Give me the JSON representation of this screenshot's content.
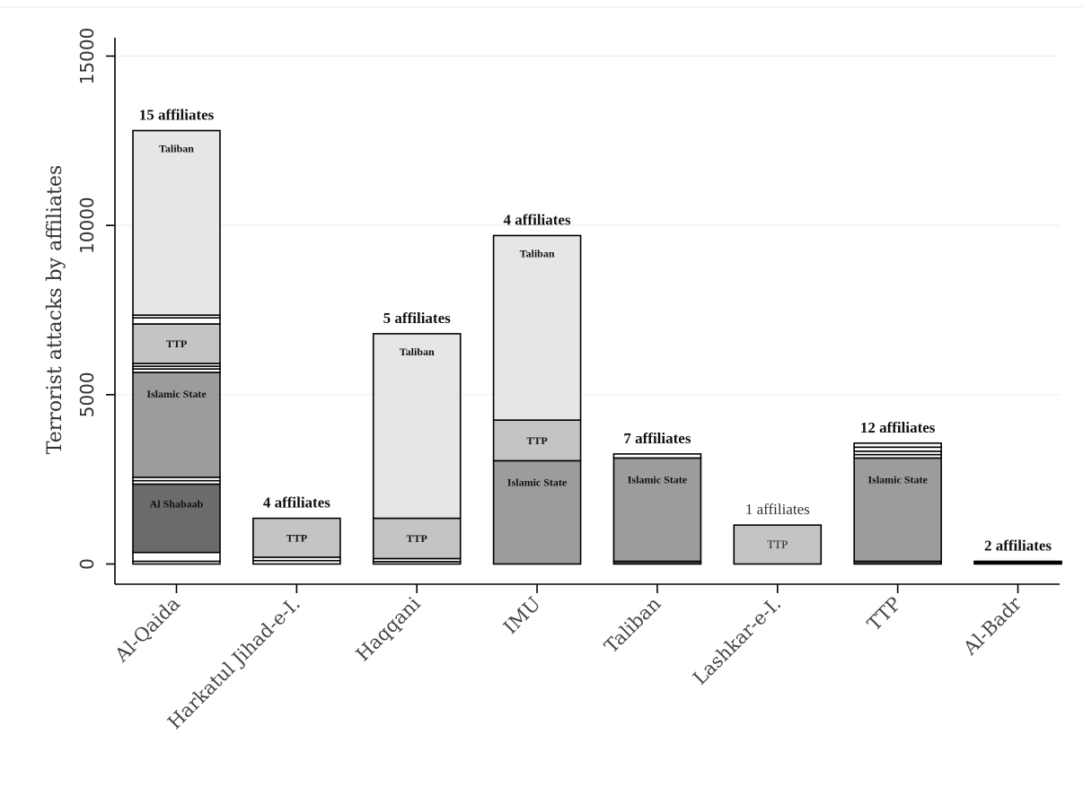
{
  "chart_data": {
    "type": "bar",
    "stacked": true,
    "ylabel": "Terrorist attacks by affiliates",
    "xlabel": "",
    "ylim": [
      0,
      15000
    ],
    "yticks": [
      0,
      5000,
      10000,
      15000
    ],
    "grid": true,
    "categories": [
      "Al-Qaida",
      "Harkatul Jihad-e-I.",
      "Haqqani",
      "IMU",
      "Taliban",
      "Lashkar-e-I.",
      "TTP",
      "Al-Badr"
    ],
    "bars": [
      {
        "category": "Al-Qaida",
        "label": "15 affiliates",
        "label_style": "bold",
        "segments": [
          {
            "value": 80,
            "fill": "#ffffff",
            "label": ""
          },
          {
            "value": 260,
            "fill": "#ffffff",
            "label": ""
          },
          {
            "value": 2020,
            "fill": "#6b6b6b",
            "label": "Al Shabaab"
          },
          {
            "value": 100,
            "fill": "#ffffff",
            "label": ""
          },
          {
            "value": 100,
            "fill": "#ffffff",
            "label": ""
          },
          {
            "value": 3100,
            "fill": "#9c9c9c",
            "label": "Islamic State"
          },
          {
            "value": 100,
            "fill": "#ffffff",
            "label": ""
          },
          {
            "value": 80,
            "fill": "#ffffff",
            "label": ""
          },
          {
            "value": 80,
            "fill": "#ffffff",
            "label": ""
          },
          {
            "value": 1170,
            "fill": "#c4c4c4",
            "label": "TTP"
          },
          {
            "value": 180,
            "fill": "#ffffff",
            "label": ""
          },
          {
            "value": 80,
            "fill": "#ffffff",
            "label": ""
          },
          {
            "value": 5450,
            "fill": "#e6e6e6",
            "label": "Taliban"
          }
        ]
      },
      {
        "category": "Harkatul Jihad-e-I.",
        "label": "4 affiliates",
        "label_style": "bold",
        "segments": [
          {
            "value": 100,
            "fill": "#ffffff",
            "label": ""
          },
          {
            "value": 100,
            "fill": "#ffffff",
            "label": ""
          },
          {
            "value": 1150,
            "fill": "#c4c4c4",
            "label": "TTP"
          }
        ]
      },
      {
        "category": "Haqqani",
        "label": "5 affiliates",
        "label_style": "bold",
        "segments": [
          {
            "value": 70,
            "fill": "#ffffff",
            "label": ""
          },
          {
            "value": 90,
            "fill": "#ffffff",
            "label": ""
          },
          {
            "value": 1190,
            "fill": "#c4c4c4",
            "label": "TTP"
          },
          {
            "value": 5450,
            "fill": "#e6e6e6",
            "label": "Taliban"
          }
        ]
      },
      {
        "category": "IMU",
        "label": "4 affiliates",
        "label_style": "bold",
        "segments": [
          {
            "value": 3050,
            "fill": "#9c9c9c",
            "label": "Islamic State"
          },
          {
            "value": 1200,
            "fill": "#c4c4c4",
            "label": "TTP"
          },
          {
            "value": 5450,
            "fill": "#e6e6e6",
            "label": "Taliban"
          }
        ]
      },
      {
        "category": "Taliban",
        "label": "7 affiliates",
        "label_style": "bold",
        "segments": [
          {
            "value": 80,
            "fill": "#555555",
            "label": ""
          },
          {
            "value": 3050,
            "fill": "#9c9c9c",
            "label": "Islamic State"
          },
          {
            "value": 120,
            "fill": "#ffffff",
            "label": ""
          }
        ]
      },
      {
        "category": "Lashkar-e-I.",
        "label": "1 affiliates",
        "label_style": "normal",
        "segments": [
          {
            "value": 1150,
            "fill": "#c4c4c4",
            "label": "TTP"
          }
        ]
      },
      {
        "category": "TTP",
        "label": "12 affiliates",
        "label_style": "bold",
        "segments": [
          {
            "value": 80,
            "fill": "#555555",
            "label": ""
          },
          {
            "value": 3050,
            "fill": "#9c9c9c",
            "label": "Islamic State"
          },
          {
            "value": 100,
            "fill": "#ffffff",
            "label": ""
          },
          {
            "value": 100,
            "fill": "#ffffff",
            "label": ""
          },
          {
            "value": 120,
            "fill": "#ffffff",
            "label": ""
          },
          {
            "value": 120,
            "fill": "#ffffff",
            "label": ""
          }
        ]
      },
      {
        "category": "Al-Badr",
        "label": "2 affiliates",
        "label_style": "bold",
        "segments": [
          {
            "value": 40,
            "fill": "#555555",
            "label": ""
          },
          {
            "value": 40,
            "fill": "#555555",
            "label": ""
          }
        ]
      }
    ]
  }
}
